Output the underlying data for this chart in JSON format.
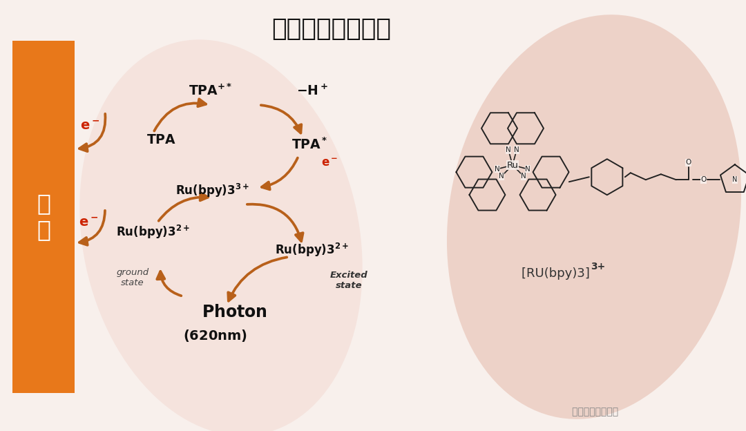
{
  "title": "电化学发光原理：",
  "bg_color": "#F8F0EC",
  "electrode_color": "#E8781A",
  "electrode_text": "电\n极",
  "electrode_text_color": "#FFFFFF",
  "arrow_color": "#B8601A",
  "red_color": "#CC2200",
  "label_rubpy": "[RU(bpy)3] ",
  "label_rubpy_sup": "3+",
  "watermark": "体外诊断技术支持",
  "pink_blob_right_color": "#EAC8BC",
  "pink_blob_left_color": "#F2D8D0",
  "struct_color": "#222222"
}
